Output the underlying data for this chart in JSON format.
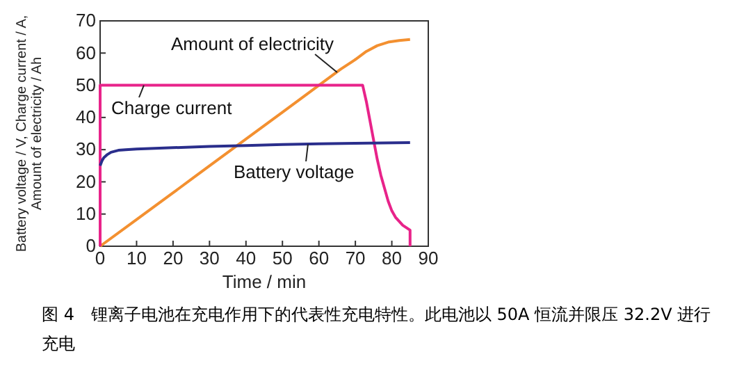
{
  "chart_data": {
    "type": "line",
    "xlabel": "Time / min",
    "ylabel": "Battery voltage / V, Charge current / A,\nAmount of electricity / Ah",
    "xlim": [
      0,
      90
    ],
    "xticks": [
      0,
      10,
      20,
      30,
      40,
      50,
      60,
      70,
      80,
      90
    ],
    "ylim": [
      0,
      70
    ],
    "yticks": [
      0,
      10,
      20,
      30,
      40,
      50,
      60,
      70
    ],
    "grid": false,
    "legend": false,
    "marker": "none",
    "line_style": "solid",
    "series": [
      {
        "name": "Amount of electricity",
        "color": "#f39030",
        "x": [
          0,
          10,
          20,
          30,
          40,
          50,
          60,
          66,
          70,
          73,
          76,
          79,
          82,
          85
        ],
        "values": [
          0,
          8.3,
          16.6,
          25,
          33.3,
          41.6,
          50,
          55,
          58,
          60.5,
          62.3,
          63.4,
          63.9,
          64.2
        ]
      },
      {
        "name": "Charge current",
        "color": "#e8238a",
        "x": [
          0,
          0,
          72,
          73,
          74,
          75,
          76,
          77,
          78,
          79,
          80,
          81,
          83,
          85,
          85
        ],
        "values": [
          0,
          50,
          50,
          45,
          39,
          33,
          27,
          22,
          18,
          14,
          11,
          9,
          6.5,
          5,
          0
        ]
      },
      {
        "name": "Battery voltage",
        "color": "#2a2e8c",
        "x": [
          0,
          0.5,
          1,
          2,
          3,
          5,
          7,
          10,
          20,
          30,
          40,
          50,
          60,
          70,
          85
        ],
        "values": [
          25,
          26.5,
          27.5,
          28.5,
          29.2,
          29.8,
          30,
          30.2,
          30.6,
          31,
          31.3,
          31.6,
          31.8,
          32,
          32.2
        ]
      }
    ],
    "annotations": [
      "图 4　锂离子电池在充电作用下的代表性充电特性。此电池以 50A 恒流并限压 32.2V 进行充电"
    ]
  }
}
